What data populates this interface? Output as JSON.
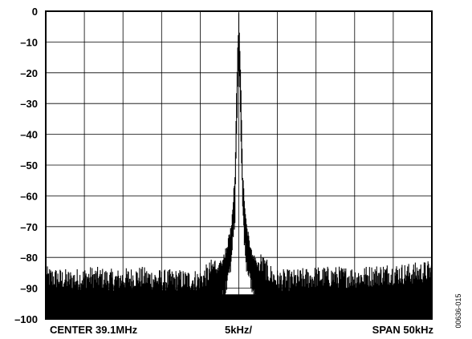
{
  "chart_data": {
    "type": "line",
    "title": "",
    "xlabel": "",
    "ylabel": "",
    "ylim": [
      -100,
      0
    ],
    "yticks": [
      "0",
      "–10",
      "–20",
      "–30",
      "–40",
      "–50",
      "–60",
      "–70",
      "–80",
      "–90",
      "–100"
    ],
    "xlim": [
      -25,
      25
    ],
    "x_divisions": 10,
    "grid": true,
    "bottom_labels": {
      "left": "CENTER 39.1MHz",
      "center": "5kHz/",
      "right": "SPAN 50kHz"
    },
    "series": [
      {
        "points_x": [
          -25,
          -22,
          -19,
          -16,
          -13,
          -10,
          -7,
          -5,
          -4,
          -3,
          -2,
          -1.5,
          -1,
          -0.5,
          -0.3,
          -0.15,
          0,
          0.15,
          0.3,
          0.5,
          1,
          1.5,
          2,
          3,
          4,
          5,
          7,
          10,
          13,
          16,
          19,
          22,
          25
        ],
        "points_y": [
          -90,
          -91,
          -90,
          -91,
          -90,
          -91,
          -91,
          -91,
          -89,
          -86,
          -82,
          -78,
          -72,
          -55,
          -30,
          -15,
          -2,
          -15,
          -30,
          -55,
          -72,
          -78,
          -82,
          -86,
          -89,
          -91,
          -91,
          -90,
          -90,
          -90,
          -89,
          -89,
          -88
        ],
        "noise_floor": -91,
        "noise_peak_amplitude": 8
      }
    ],
    "figure_id": "00636-015"
  }
}
